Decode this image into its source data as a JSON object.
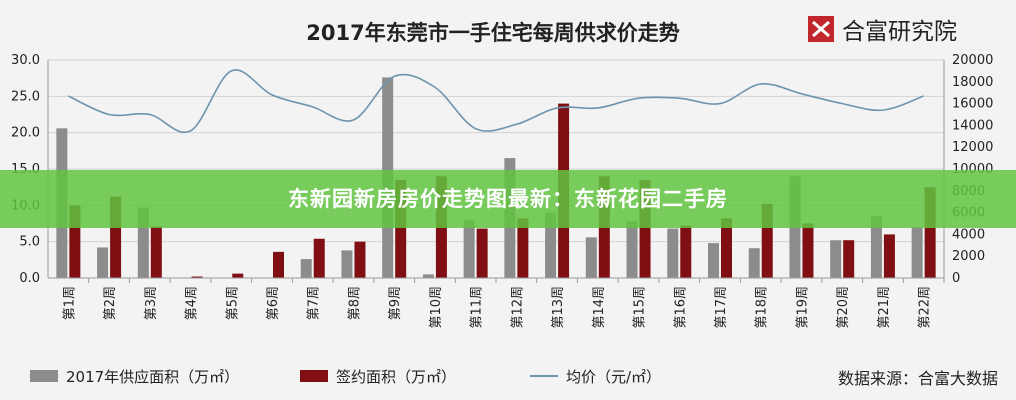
{
  "brand": {
    "logo_text": "合富研究院",
    "source": "数据来源：合富大数据"
  },
  "banner": {
    "text": "东新园新房房价走势图最新：东新花园二手房"
  },
  "colors": {
    "supply": "#8c8c8c",
    "signed": "#7f0f12",
    "price": "#6e94ac",
    "banner": "#5dc23a",
    "logo": "#c0262b"
  },
  "chart_data": {
    "type": "bar",
    "title": "2017年东莞市一手住宅每周供求价走势",
    "categories": [
      "第1周",
      "第2周",
      "第3周",
      "第4周",
      "第5周",
      "第6周",
      "第7周",
      "第8周",
      "第9周",
      "第10周",
      "第11周",
      "第12周",
      "第13周",
      "第14周",
      "第15周",
      "第16周",
      "第17周",
      "第18周",
      "第19周",
      "第20周",
      "第21周",
      "第22周"
    ],
    "series": [
      {
        "name": "2017年供应面积（万㎡）",
        "kind": "bar",
        "axis": "left",
        "values": [
          20.6,
          4.2,
          9.7,
          0,
          0,
          0,
          2.6,
          3.8,
          27.6,
          0.5,
          8.0,
          16.5,
          9.0,
          5.6,
          7.8,
          6.8,
          4.8,
          4.1,
          14.0,
          5.2,
          8.5,
          7.0
        ]
      },
      {
        "name": "签约面积（万㎡）",
        "kind": "bar",
        "axis": "left",
        "values": [
          10.0,
          11.2,
          7.1,
          0.2,
          0.6,
          3.6,
          5.4,
          5.0,
          13.5,
          14.0,
          6.8,
          8.2,
          24.0,
          14.0,
          13.5,
          7.2,
          8.2,
          10.2,
          7.5,
          5.2,
          6.0,
          12.5
        ]
      },
      {
        "name": "均价（元/㎡）",
        "kind": "line",
        "axis": "right",
        "values": [
          16700,
          15000,
          15000,
          13500,
          19000,
          16800,
          15700,
          14500,
          18500,
          17500,
          13700,
          14100,
          15600,
          15600,
          16500,
          16500,
          16000,
          17800,
          16900,
          16000,
          15400,
          16700
        ]
      }
    ],
    "y_left": {
      "min": 0,
      "max": 30,
      "ticks": [
        "0.0",
        "5.0",
        "10.0",
        "15.0",
        "20.0",
        "25.0",
        "30.0"
      ]
    },
    "y_right": {
      "min": 0,
      "max": 20000,
      "ticks": [
        "0",
        "2000",
        "4000",
        "6000",
        "8000",
        "10000",
        "12000",
        "14000",
        "16000",
        "18000",
        "20000"
      ]
    },
    "grid": true,
    "legend_position": "bottom"
  }
}
